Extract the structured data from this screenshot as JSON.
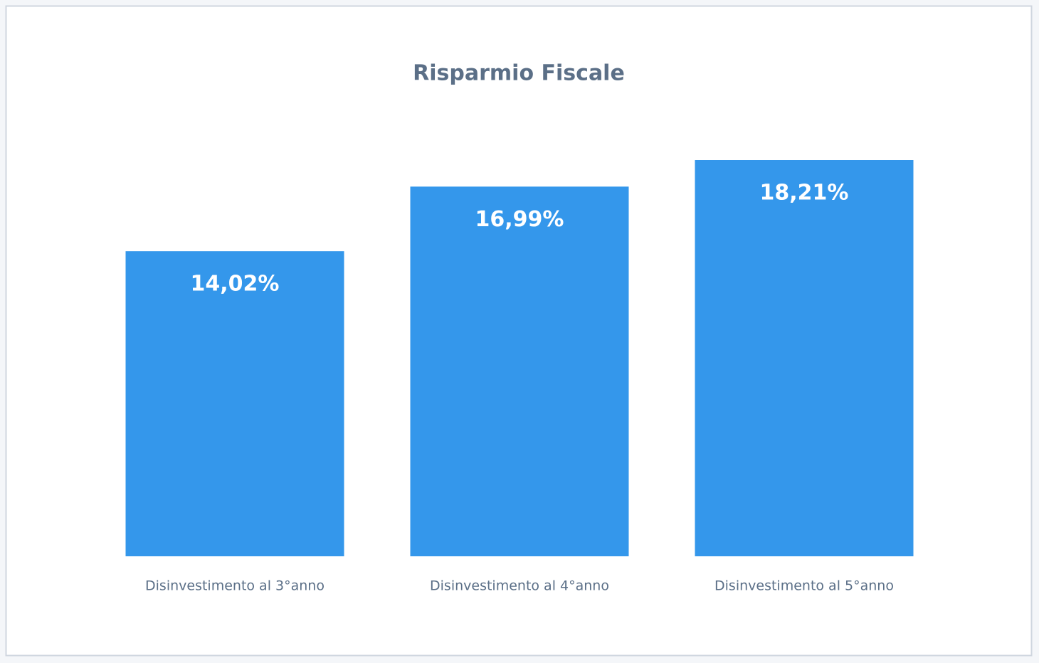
{
  "chart_data": {
    "type": "bar",
    "title": "Risparmio Fiscale",
    "categories": [
      "Disinvestimento al 3°anno",
      "Disinvestimento al 4°anno",
      "Disinvestimento al 5°anno"
    ],
    "values": [
      14.02,
      16.99,
      18.21
    ],
    "value_labels": [
      "14,02%",
      "16,99%",
      "18,21%"
    ],
    "color": "#3497eb"
  }
}
